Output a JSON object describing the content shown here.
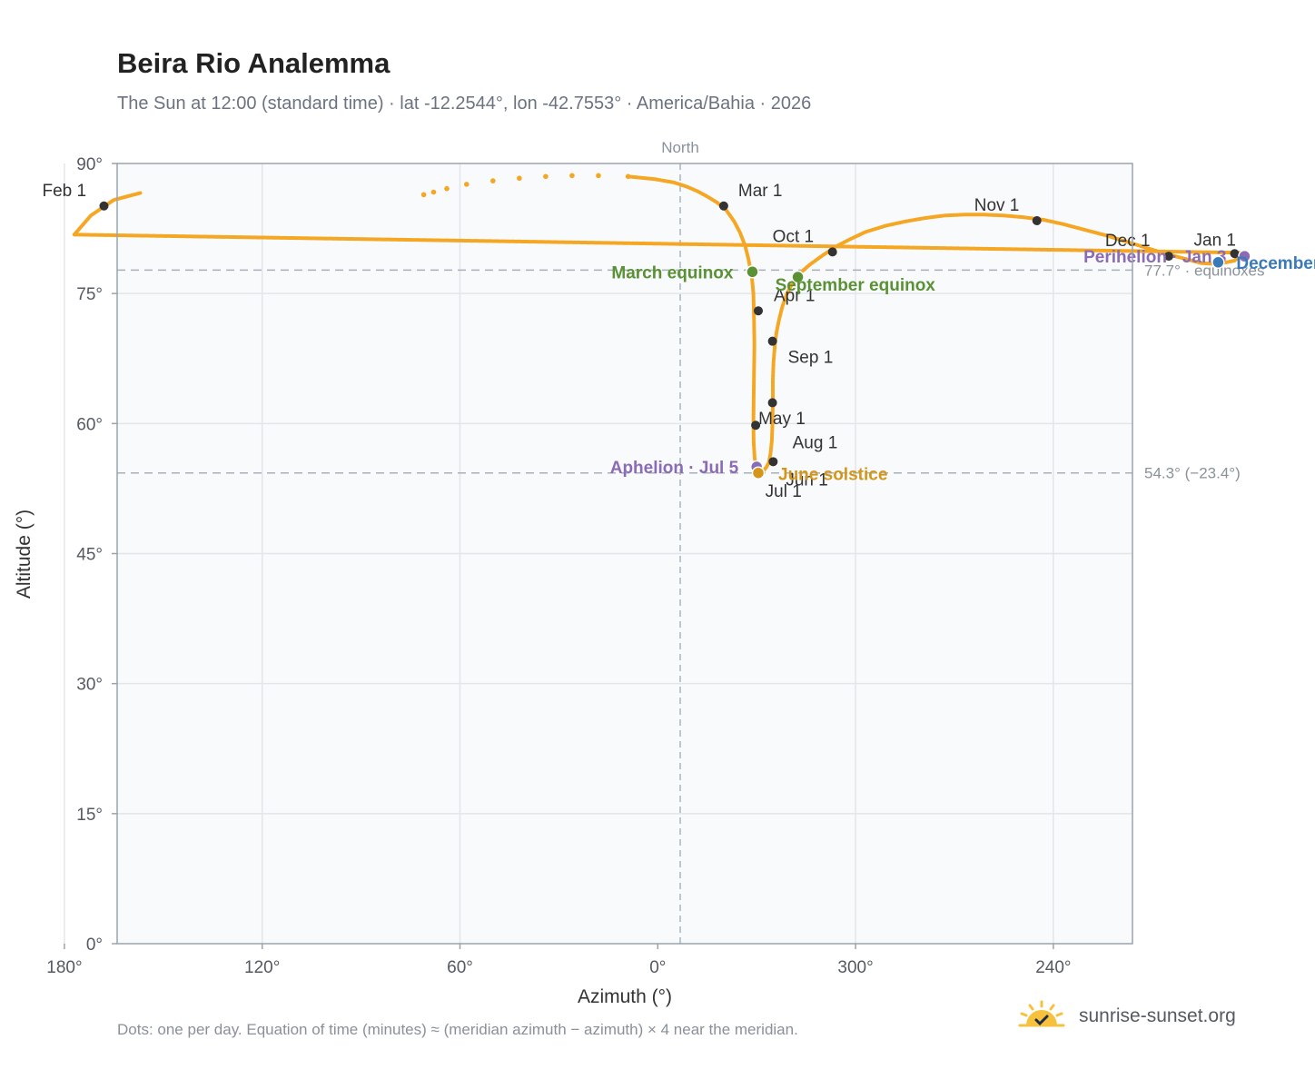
{
  "title": "Beira Rio Analemma",
  "subtitle": "The Sun at 12:00 (standard time) · lat -12.2544°, lon -42.7553° · America/Bahia · 2026",
  "footnote": "Dots: one per day. Equation of time (minutes) ≈ (meridian azimuth − azimuth) × 4 near the meridian.",
  "brand": "sunrise-sunset.org",
  "colors": {
    "curve": "#f5a623",
    "month_dot": "#333333",
    "equinox": "#5a9135",
    "december_solstice": "#3a7ab8",
    "june_solstice": "#d4961a",
    "perihelion": "#8b6bb5",
    "reference_line": "#a8b0ba",
    "plot_background": "#f8fafc",
    "grid": "#e2e6ea",
    "axis": "#9aa3ad"
  },
  "chart_data": {
    "type": "scatter",
    "title": "Beira Rio Analemma",
    "xlabel": "Azimuth (°)",
    "ylabel": "Altitude (°)",
    "x_unit": "degrees azimuth, increasing leftward from North (0°) through 300°, 240°, 180°",
    "xlim": [
      -144,
      164
    ],
    "ylim": [
      0,
      90
    ],
    "x_ticks": [
      {
        "value": 180,
        "label": "180°"
      },
      {
        "value": 240,
        "label": "240°"
      },
      {
        "value": 300,
        "label": "300°"
      },
      {
        "value": 0,
        "label": "0°"
      },
      {
        "value": 60,
        "label": "60°"
      },
      {
        "value": 120,
        "label": "120°"
      }
    ],
    "y_ticks": [
      {
        "value": 0,
        "label": "0°"
      },
      {
        "value": 15,
        "label": "15°"
      },
      {
        "value": 30,
        "label": "30°"
      },
      {
        "value": 45,
        "label": "45°"
      },
      {
        "value": 60,
        "label": "60°"
      },
      {
        "value": 75,
        "label": "75°"
      },
      {
        "value": 90,
        "label": "90°"
      }
    ],
    "grid": true,
    "meridian": {
      "azimuth": 0,
      "label": "North"
    },
    "reference_lines": [
      {
        "altitude": 77.7,
        "label": "77.7° · equinoxes"
      },
      {
        "altitude": 54.3,
        "label": "54.3° (−23.4°)"
      }
    ],
    "curve": [
      [
        157,
        86.6
      ],
      [
        165,
        85.8
      ],
      [
        172,
        84.0
      ],
      [
        177,
        81.8
      ],
      [
        182,
        79.7
      ],
      [
        185,
        78.8
      ],
      [
        190,
        78.4
      ],
      [
        195,
        78.5
      ],
      [
        200,
        79.0
      ],
      [
        206,
        79.6
      ],
      [
        212,
        80.3
      ],
      [
        218,
        81.0
      ],
      [
        224,
        81.7
      ],
      [
        230,
        82.3
      ],
      [
        237,
        83.0
      ],
      [
        243,
        83.5
      ],
      [
        249,
        83.8
      ],
      [
        255,
        84.0
      ],
      [
        261,
        84.1
      ],
      [
        267,
        84.1
      ],
      [
        273,
        84.0
      ],
      [
        279,
        83.7
      ],
      [
        285,
        83.3
      ],
      [
        291,
        82.8
      ],
      [
        297,
        82.1
      ],
      [
        302,
        81.2
      ],
      [
        306,
        80.4
      ],
      [
        310,
        79.4
      ],
      [
        314,
        78.3
      ],
      [
        317,
        77.3
      ],
      [
        319,
        76.3
      ],
      [
        320.8,
        75.0
      ],
      [
        322.2,
        73.5
      ],
      [
        323.2,
        72.0
      ],
      [
        324,
        70.5
      ],
      [
        324.5,
        69.0
      ],
      [
        324.9,
        67.0
      ],
      [
        325.1,
        65.0
      ],
      [
        325.1,
        62.5
      ],
      [
        325.2,
        60.0
      ],
      [
        325.4,
        58.0
      ],
      [
        325.8,
        56.5
      ],
      [
        326.3,
        55.5
      ],
      [
        327,
        55.0
      ],
      [
        327.8,
        54.6
      ],
      [
        328.6,
        54.5
      ],
      [
        329.4,
        54.7
      ],
      [
        330.1,
        55.0
      ],
      [
        330.6,
        56.0
      ],
      [
        330.9,
        57.8
      ],
      [
        331.0,
        60.0
      ],
      [
        330.9,
        63.0
      ],
      [
        330.8,
        66.0
      ],
      [
        330.7,
        69.0
      ],
      [
        330.8,
        72.0
      ],
      [
        331.0,
        75.0
      ],
      [
        331.5,
        77.0
      ],
      [
        332.5,
        79.0
      ],
      [
        333.5,
        80.5
      ],
      [
        335.0,
        82.0
      ],
      [
        336.8,
        83.3
      ],
      [
        339.2,
        84.6
      ],
      [
        342.0,
        85.5
      ],
      [
        345.0,
        86.2
      ],
      [
        348.0,
        86.8
      ],
      [
        351.0,
        87.3
      ],
      [
        355.0,
        87.8
      ],
      [
        361.0,
        88.2
      ],
      [
        369.0,
        88.5
      ],
      [
        378.0,
        88.6
      ],
      [
        386.0,
        88.6
      ],
      [
        394.0,
        88.5
      ],
      [
        402.0,
        88.3
      ],
      [
        410.0,
        88.0
      ],
      [
        418.0,
        87.6
      ],
      [
        424.0,
        87.1
      ],
      [
        428.0,
        86.7
      ],
      [
        431.0,
        86.4
      ]
    ],
    "curve_sparse_from_index": 68,
    "months": [
      {
        "label": "Jan 1",
        "az": 185,
        "alt": 79.6
      },
      {
        "label": "Feb 1",
        "az": 168,
        "alt": 85.1
      },
      {
        "label": "Mar 1",
        "az": 340,
        "alt": 85.1
      },
      {
        "label": "Apr 1",
        "az": 329.5,
        "alt": 73.0
      },
      {
        "label": "May 1",
        "az": 330.3,
        "alt": 59.8
      },
      {
        "label": "Jun 1",
        "az": 325,
        "alt": 55.6
      },
      {
        "label": "Jul 1",
        "az": 329.6,
        "alt": 54.4
      },
      {
        "label": "Aug 1",
        "az": 325.2,
        "alt": 62.4
      },
      {
        "label": "Sep 1",
        "az": 325.2,
        "alt": 69.5
      },
      {
        "label": "Oct 1",
        "az": 307,
        "alt": 79.8
      },
      {
        "label": "Nov 1",
        "az": 245,
        "alt": 83.4
      },
      {
        "label": "Dec 1",
        "az": 205,
        "alt": 79.3
      }
    ],
    "events": [
      {
        "label": "Perihelion · Jan 3",
        "az": 182,
        "alt": 79.3,
        "color_key": "perihelion"
      },
      {
        "label": "December solstice",
        "az": 190,
        "alt": 78.6,
        "color_key": "december_solstice"
      },
      {
        "label": "March equinox",
        "az": 331.3,
        "alt": 77.5,
        "color_key": "equinox"
      },
      {
        "label": "September equinox",
        "az": 317.5,
        "alt": 76.9,
        "color_key": "equinox"
      },
      {
        "label": "Aphelion · Jul 5",
        "az": 330.0,
        "alt": 55.0,
        "color_key": "perihelion"
      },
      {
        "label": "June solstice",
        "az": 329.5,
        "alt": 54.3,
        "color_key": "june_solstice"
      }
    ]
  }
}
